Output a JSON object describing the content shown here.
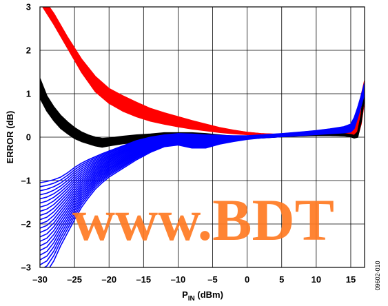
{
  "chart_data": {
    "type": "line",
    "title": "",
    "xlabel": "P",
    "xlabel_sub": "IN",
    "xlabel_unit": " (dBm)",
    "ylabel": "ERROR (dB)",
    "xlim": [
      -30,
      17
    ],
    "ylim": [
      -3,
      3
    ],
    "x_ticks": [
      -30,
      -25,
      -20,
      -15,
      -10,
      -5,
      0,
      5,
      10,
      15
    ],
    "x_tick_labels": [
      "–30",
      "–25",
      "–20",
      "–15",
      "–10",
      "–5",
      "0",
      "5",
      "10",
      "15"
    ],
    "y_ticks": [
      -3,
      -2,
      -1,
      0,
      1,
      2,
      3
    ],
    "y_tick_labels": [
      "–3",
      "–2",
      "–1",
      "0",
      "1",
      "2",
      "3"
    ],
    "grid": true,
    "legend": "none",
    "series": [
      {
        "color": "#ff0000",
        "count": 22,
        "x": [
          -30,
          -28,
          -26,
          -24,
          -22,
          -20,
          -18,
          -16,
          -14,
          -12,
          -10,
          -8,
          -6,
          -4,
          -2,
          0,
          2,
          5,
          8,
          10,
          12,
          14,
          15,
          15.5,
          16,
          16.5,
          17
        ],
        "y_upper": [
          3.3,
          2.85,
          2.3,
          1.8,
          1.4,
          1.12,
          0.95,
          0.8,
          0.66,
          0.56,
          0.47,
          0.38,
          0.3,
          0.22,
          0.16,
          0.11,
          0.08,
          0.06,
          0.06,
          0.07,
          0.09,
          0.1,
          0.11,
          0.2,
          0.55,
          0.95,
          1.3
        ],
        "y_lower": [
          3.1,
          2.6,
          2.05,
          1.5,
          1.05,
          0.78,
          0.6,
          0.47,
          0.37,
          0.3,
          0.24,
          0.19,
          0.15,
          0.11,
          0.08,
          0.06,
          0.05,
          0.04,
          0.04,
          0.05,
          0.05,
          0.04,
          0.02,
          0.0,
          0.02,
          0.3,
          0.85
        ]
      },
      {
        "color": "#000000",
        "count": 20,
        "x": [
          -30,
          -29,
          -28,
          -27,
          -26,
          -25,
          -24,
          -23,
          -22,
          -21,
          -20,
          -18,
          -16,
          -14,
          -12,
          -10,
          -8,
          -6,
          -4,
          -2,
          0,
          2,
          5,
          8,
          10,
          12,
          14,
          15,
          15.5,
          16,
          16.5,
          17
        ],
        "y_upper": [
          1.35,
          0.95,
          0.7,
          0.5,
          0.35,
          0.22,
          0.12,
          0.05,
          0.0,
          -0.03,
          -0.02,
          0.02,
          0.05,
          0.07,
          0.1,
          0.1,
          0.1,
          0.08,
          0.05,
          0.02,
          0.0,
          0.02,
          0.04,
          0.06,
          0.07,
          0.08,
          0.08,
          0.06,
          0.04,
          0.12,
          0.5,
          1.25
        ],
        "y_lower": [
          0.9,
          0.6,
          0.38,
          0.2,
          0.08,
          -0.03,
          -0.1,
          -0.15,
          -0.2,
          -0.23,
          -0.2,
          -0.15,
          -0.12,
          -0.1,
          -0.06,
          -0.05,
          -0.05,
          -0.07,
          -0.08,
          -0.06,
          -0.04,
          -0.02,
          0.01,
          0.03,
          0.04,
          0.04,
          0.03,
          0.01,
          -0.02,
          0.0,
          0.35,
          0.95
        ]
      },
      {
        "color": "#0000ff",
        "count": 22,
        "x": [
          -30,
          -29,
          -28,
          -27,
          -26,
          -25,
          -24,
          -23,
          -22,
          -21,
          -20,
          -18,
          -16,
          -14,
          -12,
          -10,
          -8,
          -6,
          -4,
          -2,
          0,
          2,
          5,
          8,
          10,
          12,
          14,
          15,
          15.5,
          16,
          16.5,
          17
        ],
        "y_upper": [
          -1.05,
          -1.02,
          -0.98,
          -0.92,
          -0.82,
          -0.7,
          -0.6,
          -0.52,
          -0.45,
          -0.38,
          -0.32,
          -0.2,
          -0.08,
          0.0,
          0.05,
          0.08,
          0.07,
          0.05,
          0.04,
          0.03,
          0.03,
          0.05,
          0.08,
          0.12,
          0.15,
          0.19,
          0.24,
          0.3,
          0.45,
          0.68,
          0.95,
          1.25
        ],
        "y_lower": [
          -3.2,
          -3.1,
          -2.85,
          -2.5,
          -2.2,
          -1.9,
          -1.62,
          -1.4,
          -1.2,
          -1.05,
          -0.92,
          -0.72,
          -0.52,
          -0.35,
          -0.22,
          -0.18,
          -0.25,
          -0.25,
          -0.16,
          -0.1,
          -0.05,
          -0.02,
          0.01,
          0.04,
          0.06,
          0.08,
          0.1,
          0.12,
          0.2,
          0.45,
          0.72,
          1.0
        ]
      }
    ]
  },
  "watermark": "www.BDT",
  "figure_code": "09602-010"
}
